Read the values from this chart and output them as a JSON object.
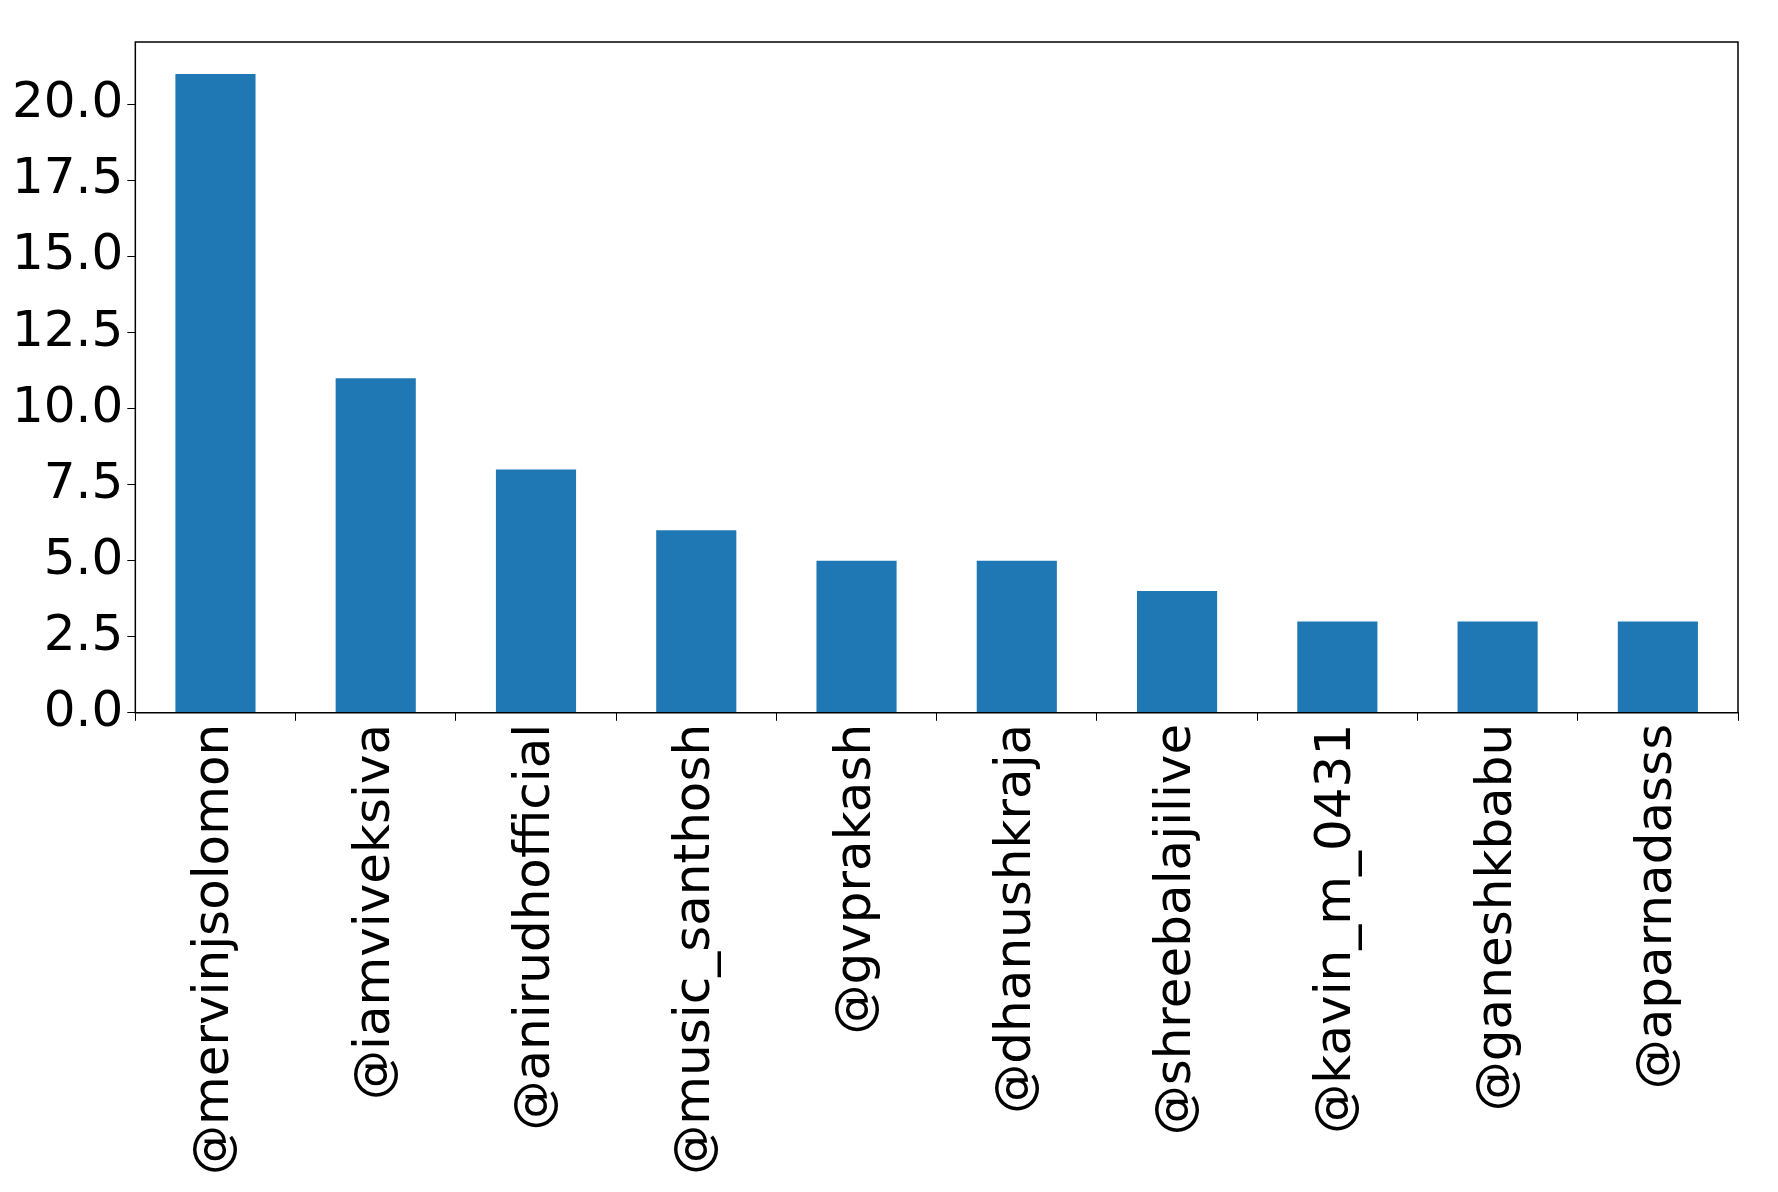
{
  "chart_data": {
    "type": "bar",
    "categories": [
      "@mervinjsolomon",
      "@iamviveksiva",
      "@anirudhofficial",
      "@music_santhosh",
      "@gvprakash",
      "@dhanushkraja",
      "@shreebalajilive",
      "@kavin_m_0431",
      "@ganeshkbabu",
      "@aparnadasss"
    ],
    "values": [
      21,
      11,
      8,
      6,
      5,
      5,
      4,
      3,
      3,
      3
    ],
    "color": "#1f77b4",
    "ylim": [
      0,
      22.05
    ],
    "yticks": [
      {
        "value": 0,
        "label": "0.0"
      },
      {
        "value": 2.5,
        "label": "2.5"
      },
      {
        "value": 5,
        "label": "5.0"
      },
      {
        "value": 7.5,
        "label": "7.5"
      },
      {
        "value": 10,
        "label": "10.0"
      },
      {
        "value": 12.5,
        "label": "12.5"
      },
      {
        "value": 15,
        "label": "15.0"
      },
      {
        "value": 17.5,
        "label": "17.5"
      },
      {
        "value": 20,
        "label": "20.0"
      }
    ],
    "grid": false,
    "legend": false
  }
}
